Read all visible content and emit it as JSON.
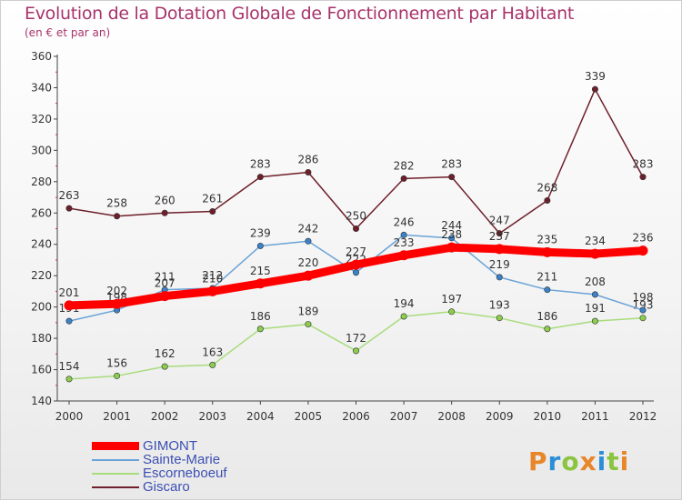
{
  "brand": {
    "letters": [
      "P",
      "r",
      "o",
      "x",
      "i",
      "t",
      "i"
    ],
    "colors": [
      "#e8862a",
      "#2a8fd6",
      "#8bc43f",
      "#e8862a",
      "#2a8fd6",
      "#8bc43f",
      "#e8862a"
    ]
  },
  "chart_data": {
    "type": "line",
    "title": "Evolution de la Dotation Globale de Fonctionnement par Habitant",
    "subtitle": "(en € et par an)",
    "xlabel": "",
    "ylabel": "",
    "ylim": [
      140,
      360
    ],
    "yticks": [
      140,
      160,
      180,
      200,
      220,
      240,
      260,
      280,
      300,
      320,
      340,
      360
    ],
    "x": [
      "2000",
      "2001",
      "2002",
      "2003",
      "2004",
      "2005",
      "2006",
      "2007",
      "2008",
      "2009",
      "2010",
      "2011",
      "2012"
    ],
    "grid": false,
    "legend_position": "bottom-left",
    "series": [
      {
        "name": "Giscaro",
        "color": "#6e1f2a",
        "dot": "#6e1f2a",
        "width": 1.5,
        "values": [
          263,
          258,
          260,
          261,
          283,
          286,
          250,
          282,
          283,
          247,
          268,
          339,
          283
        ]
      },
      {
        "name": "Escorneboeuf",
        "color": "#a8dc7c",
        "dot": "#8ccd4e",
        "width": 1.5,
        "values": [
          154,
          156,
          162,
          163,
          186,
          189,
          172,
          194,
          197,
          193,
          186,
          191,
          193
        ]
      },
      {
        "name": "Sainte-Marie",
        "color": "#6aa3d8",
        "dot": "#3b82c8",
        "width": 1.5,
        "values": [
          191,
          198,
          211,
          212,
          239,
          242,
          222,
          246,
          244,
          219,
          211,
          208,
          198
        ]
      },
      {
        "name": "GIMONT",
        "color": "#ff0000",
        "dot": "#ff0000",
        "width": 9,
        "values": [
          201,
          202,
          207,
          210,
          215,
          220,
          227,
          233,
          238,
          237,
          235,
          234,
          236
        ]
      }
    ],
    "legend_order": [
      "GIMONT",
      "Sainte-Marie",
      "Escorneboeuf",
      "Giscaro"
    ]
  }
}
